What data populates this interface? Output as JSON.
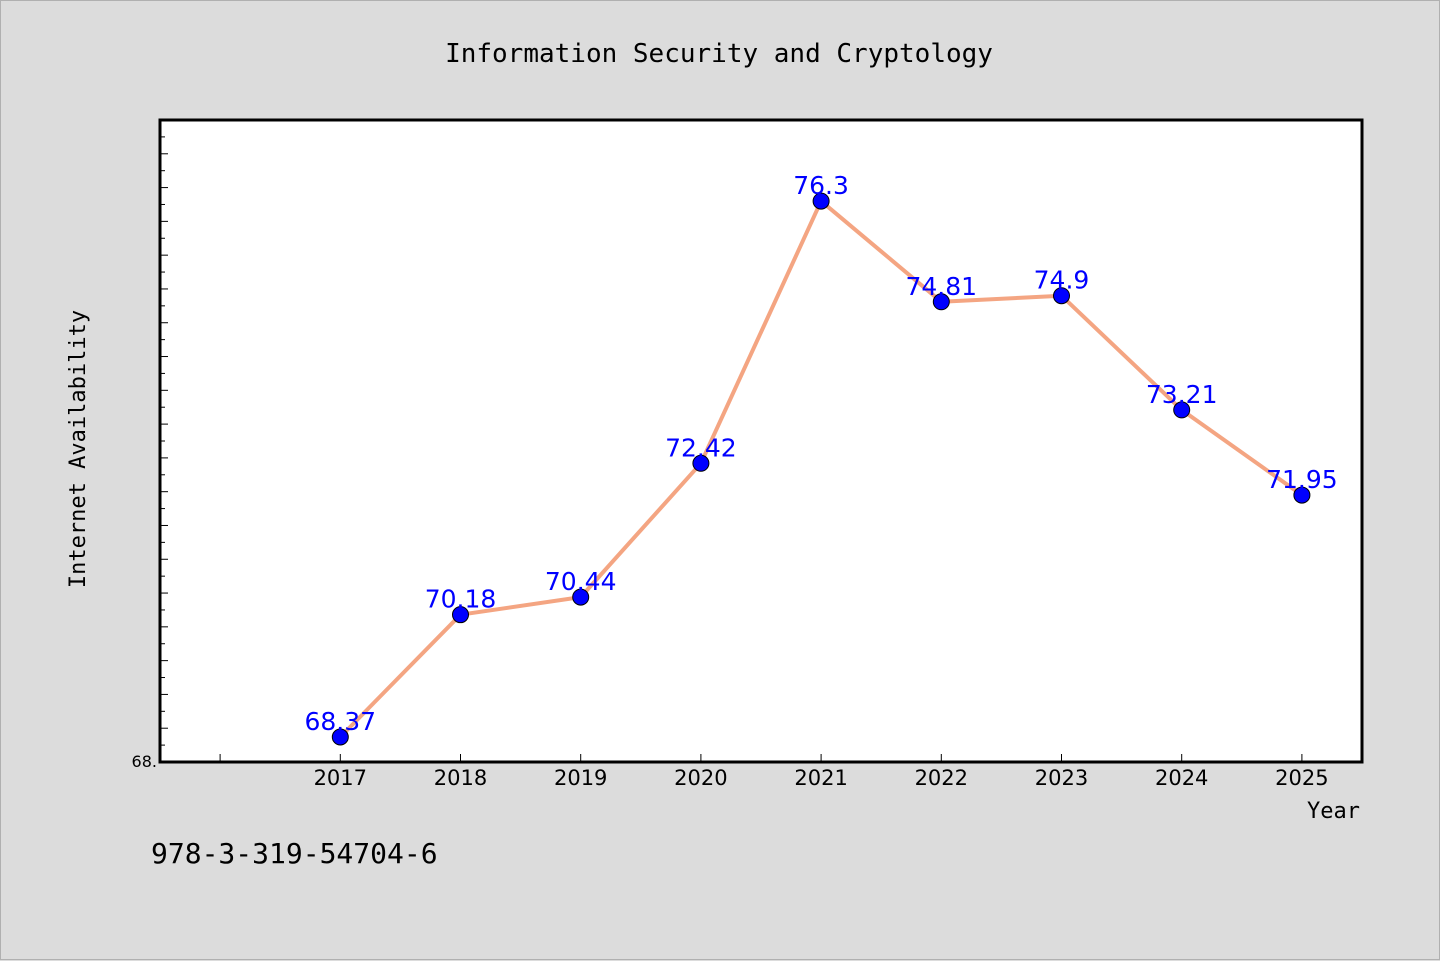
{
  "footer_text": "978-3-319-54704-6",
  "chart_data": {
    "type": "line",
    "title": "Information Security and Cryptology",
    "xlabel": "Year",
    "ylabel": "Internet Availability",
    "categories": [
      "2017",
      "2018",
      "2019",
      "2020",
      "2021",
      "2022",
      "2023",
      "2024",
      "2025"
    ],
    "series": [
      {
        "values": [
          68.37,
          70.18,
          70.44,
          72.42,
          76.3,
          74.81,
          74.9,
          73.21,
          71.95
        ],
        "data_labels": [
          "68.37",
          "70.18",
          "70.44",
          "72.42",
          "76.3",
          "74.81",
          "74.9",
          "73.21",
          "71.95"
        ],
        "line_color": "#f4a582",
        "marker_color": "#0000ff"
      }
    ],
    "y_tick_labels": [
      "68."
    ],
    "ylim": [
      68.0,
      77.5
    ],
    "xlim": [
      2015.5,
      2025.5
    ],
    "grid": false,
    "legend": "none",
    "plot_background": "#ffffff",
    "figure_background": "#dcdcdc"
  }
}
